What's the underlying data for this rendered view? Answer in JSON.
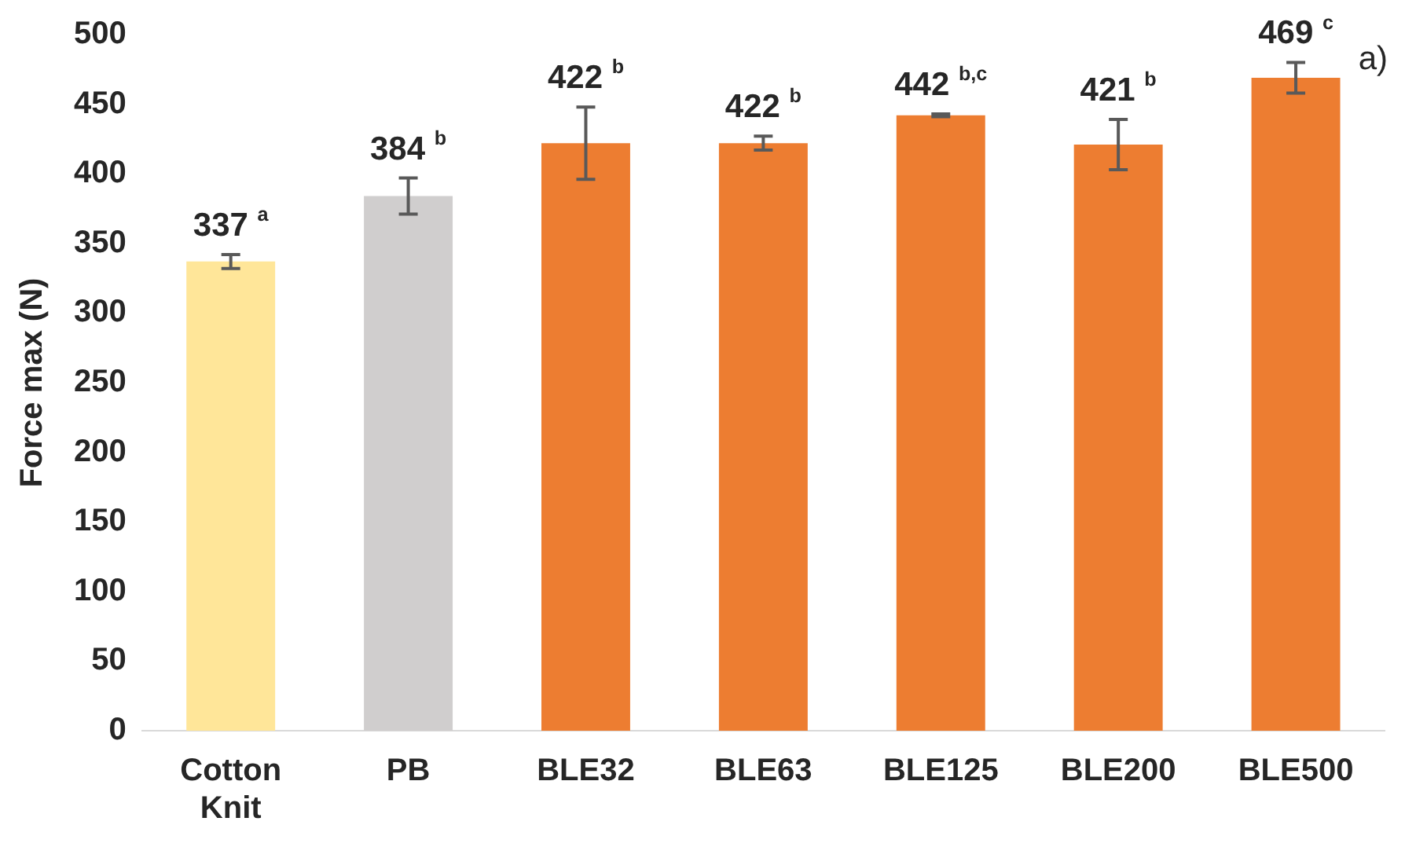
{
  "chart_data": {
    "type": "bar",
    "ylabel": "Force max (N)",
    "categories": [
      "Cotton Knit",
      "PB",
      "BLE32",
      "BLE63",
      "BLE125",
      "BLE200",
      "BLE500"
    ],
    "values": [
      337,
      384,
      422,
      422,
      442,
      421,
      469
    ],
    "colors": [
      "#ffe699",
      "#d0cece",
      "#ed7d31",
      "#ed7d31",
      "#ed7d31",
      "#ed7d31",
      "#ed7d31"
    ],
    "errors": [
      5,
      13,
      26,
      5,
      1,
      18,
      11
    ],
    "value_labels": [
      "337 $^{a}$",
      "384 $^{b}$",
      "422 $^{b}$",
      "422 $^{b}$",
      "442 $^{b,c}$",
      "421 $^{b}$",
      "469 $^{c}$"
    ],
    "ylim": [
      0,
      500
    ],
    "yticks": [
      0,
      50,
      100,
      150,
      200,
      250,
      300,
      350,
      400,
      450,
      500
    ],
    "grid": false,
    "legend": false,
    "annotations": [
      "a)"
    ]
  }
}
